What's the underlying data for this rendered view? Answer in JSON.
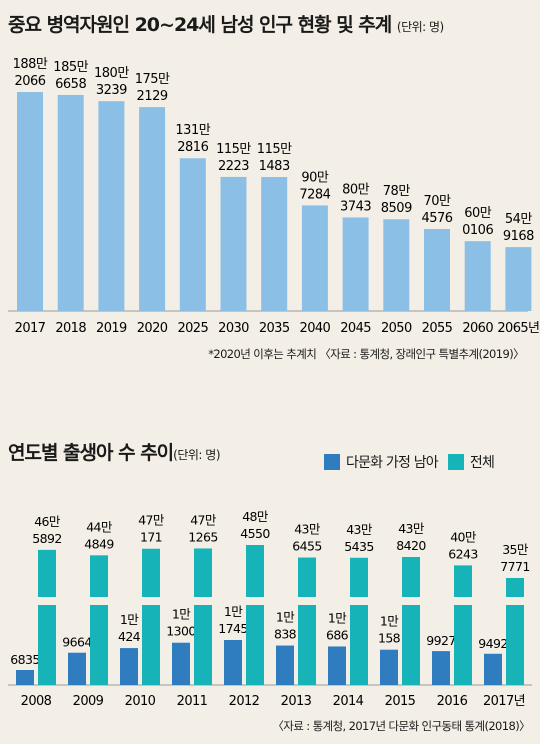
{
  "chart1": {
    "title": "중요 병역자원인 20~24세 남성 인구 현황 및 추계",
    "unit": "(단위: 명)",
    "note": "*2020년 이후는 추계치 〈자료 : 통계청, 장래인구 특별추계(2019)〉",
    "chart_data": {
      "type": "bar",
      "categories": [
        "2017",
        "2018",
        "2019",
        "2020",
        "2025",
        "2030",
        "2035",
        "2040",
        "2045",
        "2050",
        "2055",
        "2060",
        "2065년"
      ],
      "values": [
        1882066,
        1856658,
        1803239,
        1752129,
        1312816,
        1152223,
        1151483,
        907284,
        803743,
        788509,
        704576,
        600106,
        549168
      ],
      "value_labels": [
        [
          "188만",
          "2066"
        ],
        [
          "185만",
          "6658"
        ],
        [
          "180만",
          "3239"
        ],
        [
          "175만",
          "2129"
        ],
        [
          "131만",
          "2816"
        ],
        [
          "115만",
          "2223"
        ],
        [
          "115만",
          "1483"
        ],
        [
          "90만",
          "7284"
        ],
        [
          "80만",
          "3743"
        ],
        [
          "78만",
          "8509"
        ],
        [
          "70만",
          "4576"
        ],
        [
          "60만",
          "0106"
        ],
        [
          "54만",
          "9168"
        ]
      ],
      "color": "#8cbfe6"
    }
  },
  "chart2": {
    "title": "연도별 출생아 수 추이",
    "unit": "(단위: 명)",
    "legend": [
      "다문화 가정 남아",
      "전체"
    ],
    "note": "〈자료 : 통계청, 2017년 다문화 인구동태 통계(2018)〉",
    "chart_data": {
      "type": "bar",
      "categories": [
        "2008",
        "2009",
        "2010",
        "2011",
        "2012",
        "2013",
        "2014",
        "2015",
        "2016",
        "2017년"
      ],
      "series": [
        {
          "name": "다문화 가정 남아",
          "values": [
            6835,
            9664,
            10424,
            11300,
            11745,
            10838,
            10686,
            10158,
            9927,
            9492
          ],
          "color": "#2f7dbf",
          "labels": [
            [
              "6835"
            ],
            [
              "9664"
            ],
            [
              "1만",
              "424"
            ],
            [
              "1만",
              "1300"
            ],
            [
              "1만",
              "1745"
            ],
            [
              "1만",
              "838"
            ],
            [
              "1만",
              "686"
            ],
            [
              "1만",
              "158"
            ],
            [
              "9927"
            ],
            [
              "9492"
            ]
          ]
        },
        {
          "name": "전체",
          "values": [
            465892,
            444849,
            470171,
            471265,
            484550,
            436455,
            435435,
            438420,
            406243,
            357771
          ],
          "color": "#16b3b9",
          "labels": [
            [
              "46만",
              "5892"
            ],
            [
              "44만",
              "4849"
            ],
            [
              "47만",
              "171"
            ],
            [
              "47만",
              "1265"
            ],
            [
              "48만",
              "4550"
            ],
            [
              "43만",
              "6455"
            ],
            [
              "43만",
              "5435"
            ],
            [
              "43만",
              "8420"
            ],
            [
              "40만",
              "6243"
            ],
            [
              "35만",
              "7771"
            ]
          ]
        }
      ]
    }
  }
}
